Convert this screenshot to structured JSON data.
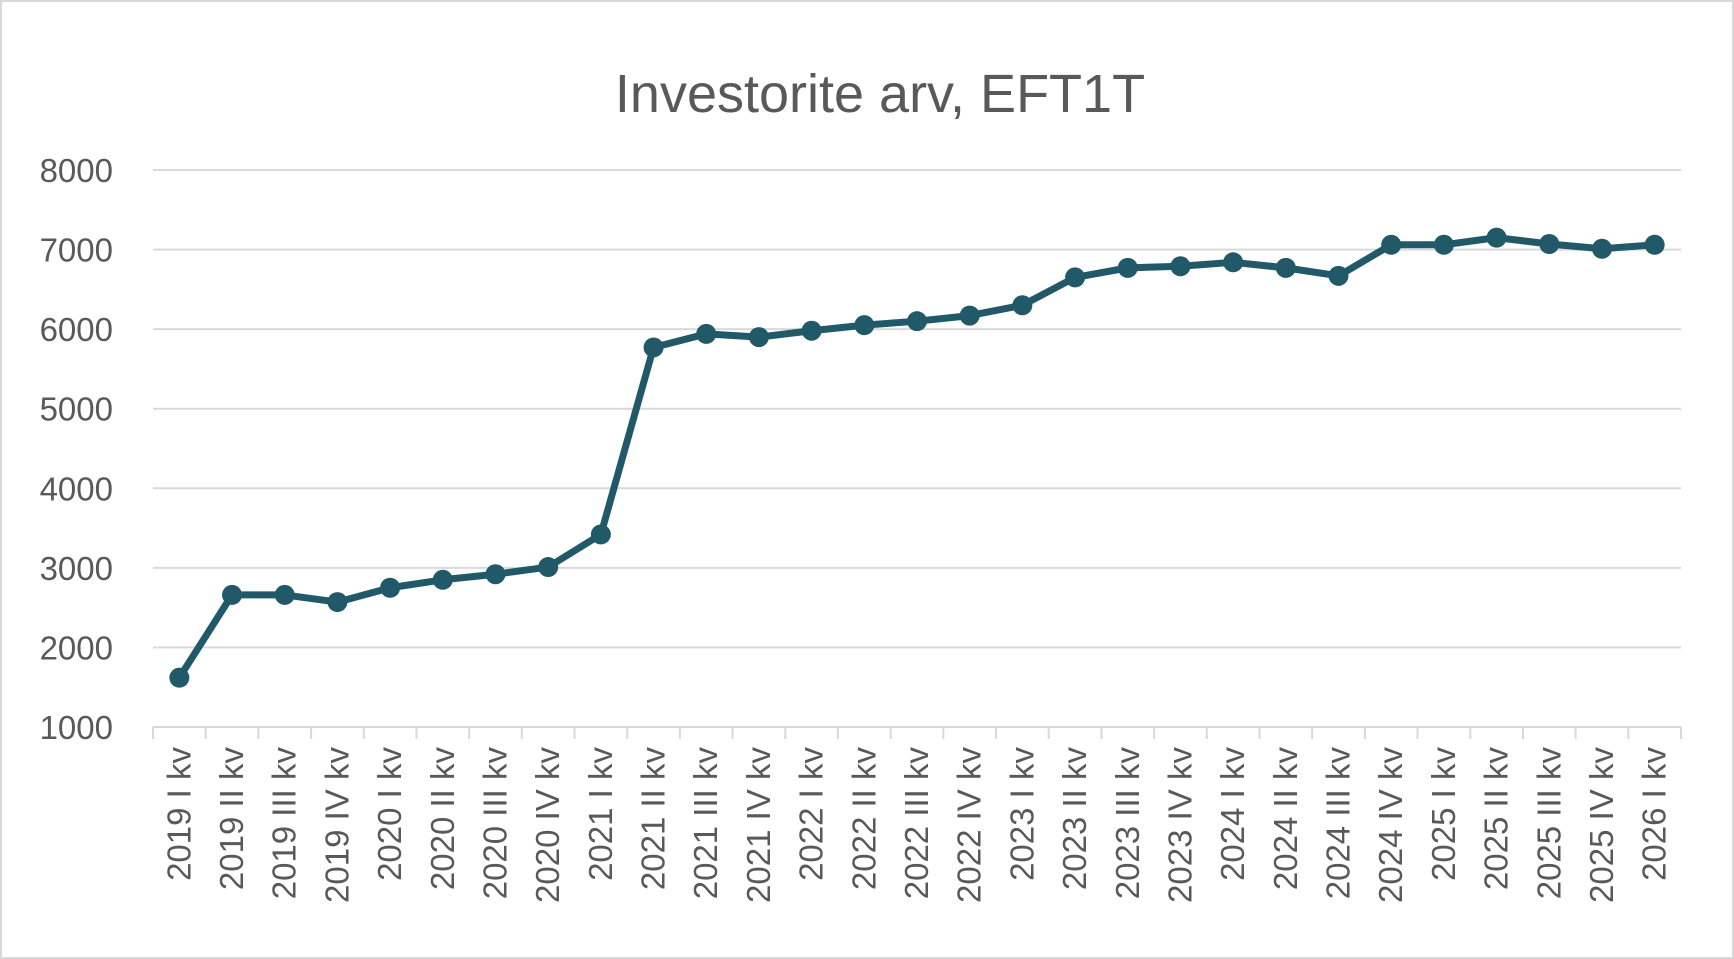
{
  "chart_data": {
    "type": "line",
    "title": "Investorite arv, EFT1T",
    "xlabel": "",
    "ylabel": "",
    "ylim": [
      1000,
      8000
    ],
    "yticks": [
      "8000",
      "7000",
      "6000",
      "5000",
      "4000",
      "3000",
      "2000",
      "1000"
    ],
    "grid": true,
    "legend": "none",
    "categories": [
      "2019 I kv",
      "2019 II kv",
      "2019 III kv",
      "2019 IV kv",
      "2020 I kv",
      "2020 II kv",
      "2020 III kv",
      "2020 IV kv",
      "2021 I kv",
      "2021 II kv",
      "2021 III kv",
      "2021 IV kv",
      "2022 I kv",
      "2022 II kv",
      "2022 III kv",
      "2022 IV kv",
      "2023 I kv",
      "2023 II kv",
      "2023 III kv",
      "2023 IV kv",
      "2024 I kv",
      "2024 II kv",
      "2024 III kv",
      "2024 IV kv",
      "2025 I kv",
      "2025 II kv",
      "2025 III kv",
      "2025 IV kv",
      "2026 I kv"
    ],
    "series": [
      {
        "values": [
          1620,
          2660,
          2660,
          2570,
          2750,
          2850,
          2920,
          3010,
          3420,
          5770,
          5940,
          5900,
          5980,
          6050,
          6100,
          6170,
          6300,
          6650,
          6770,
          6790,
          6840,
          6770,
          6670,
          7060,
          7060,
          7150,
          7070,
          7010,
          7060
        ]
      }
    ],
    "colors": {
      "line": "#215968",
      "grid": "#d9d9d9",
      "text": "#595959"
    }
  }
}
